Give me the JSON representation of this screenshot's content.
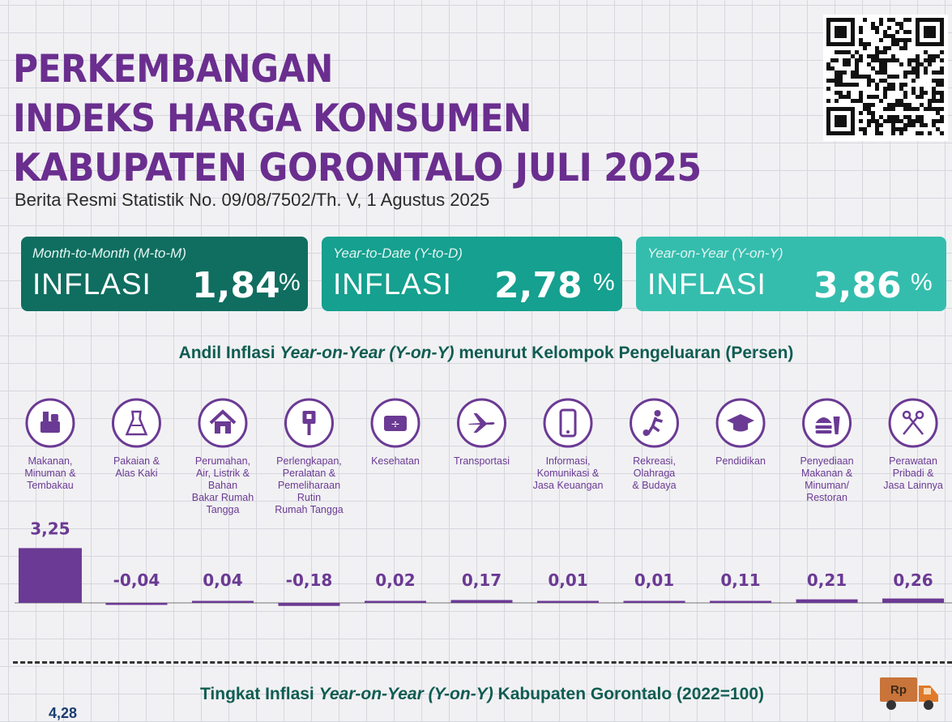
{
  "header": {
    "title_line1": "PERKEMBANGAN",
    "title_line2": "INDEKS HARGA KONSUMEN",
    "title_line3": "KABUPATEN GORONTALO JULI 2025",
    "subtitle": "Berita Resmi Statistik No. 09/08/7502/Th. V, 1 Agustus 2025"
  },
  "cards": [
    {
      "caption": "Month-to-Month (M-to-M)",
      "label": "INFLASI",
      "value": "1,84",
      "unit": "%"
    },
    {
      "caption": "Year-to-Date (Y-to-D)",
      "label": "INFLASI",
      "value": "2,78",
      "unit": "%"
    },
    {
      "caption": "Year-on-Year (Y-on-Y)",
      "label": "INFLASI",
      "value": "3,86",
      "unit": "%"
    }
  ],
  "section1": {
    "pre": "Andil Inflasi ",
    "italic": "Year-on-Year (Y-on-Y)",
    "post": " menurut Kelompok Pengeluaran (Persen)"
  },
  "section2": {
    "pre": "Tingkat Inflasi ",
    "italic": "Year-on-Year (Y-on-Y)",
    "post": " Kabupaten Gorontalo (2022=100)"
  },
  "partial_value": "4,28",
  "truck_label": "Rp",
  "colors": {
    "purple": "#6a2e8f",
    "bar": "#6b3a94",
    "teal_dark": "#0f6e60",
    "teal_mid": "#15a08f",
    "teal_light": "#34bdad"
  },
  "chart_data": {
    "type": "bar",
    "title": "Andil Inflasi Year-on-Year (Y-on-Y) menurut Kelompok Pengeluaran (Persen)",
    "categories": [
      [
        "Makanan,",
        "Minuman &",
        "Tembakau"
      ],
      [
        "Pakaian &",
        "Alas Kaki"
      ],
      [
        "Perumahan,",
        "Air, Listrik &",
        "Bahan",
        "Bakar Rumah",
        "Tangga"
      ],
      [
        "Perlengkapan,",
        "Peralatan &",
        "Pemeliharaan",
        "Rutin",
        "Rumah Tangga"
      ],
      [
        "Kesehatan"
      ],
      [
        "Transportasi"
      ],
      [
        "Informasi,",
        "Komunikasi &",
        "Jasa Keuangan"
      ],
      [
        "Rekreasi,",
        "Olahraga",
        "& Budaya"
      ],
      [
        "Pendidikan"
      ],
      [
        "Penyediaan",
        "Makanan &",
        "Minuman/",
        "Restoran"
      ],
      [
        "Perawatan",
        "Pribadi &",
        "Jasa Lainnya"
      ]
    ],
    "icons": [
      "food-basket-icon",
      "dress-icon",
      "house-icon",
      "plug-icon",
      "first-aid-kit-icon",
      "airplane-icon",
      "smartphone-icon",
      "sports-icon",
      "graduation-cap-icon",
      "fast-food-icon",
      "scissors-comb-icon"
    ],
    "values": [
      3.25,
      -0.04,
      0.04,
      -0.18,
      0.02,
      0.17,
      0.01,
      0.01,
      0.11,
      0.21,
      0.26
    ],
    "labels": [
      "3,25",
      "-0,04",
      "0,04",
      "-0,18",
      "0,02",
      "0,17",
      "0,01",
      "0,01",
      "0,11",
      "0,21",
      "0,26"
    ],
    "ylim": [
      -0.2,
      3.5
    ]
  }
}
